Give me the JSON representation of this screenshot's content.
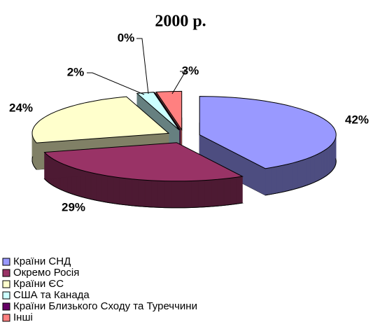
{
  "chart_data": {
    "type": "pie",
    "title": "2000 р.",
    "categories": [
      "Країни СНД",
      "Окремо Росія",
      "Країни ЄС",
      "США та Канада",
      "Країни Близького Сходу та Туреччини",
      "Інші"
    ],
    "values": [
      42,
      29,
      24,
      2,
      0,
      3
    ],
    "value_labels": [
      "42%",
      "29%",
      "24%",
      "2%",
      "0%",
      "3%"
    ],
    "colors": [
      "#9999ff",
      "#993366",
      "#ffffcc",
      "#ccffff",
      "#660066",
      "#ff8080"
    ],
    "legend": "bottom-left"
  }
}
